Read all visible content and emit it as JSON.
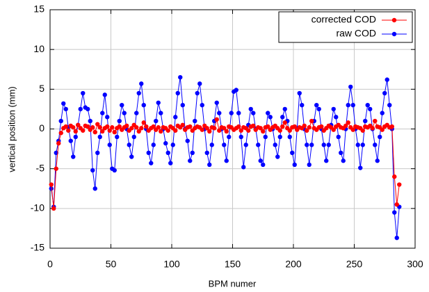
{
  "chart_data": {
    "type": "line",
    "xlabel": "BPM numer",
    "ylabel": "vertical position (mm)",
    "x": [
      1,
      3,
      5,
      7,
      9,
      11,
      13,
      15,
      17,
      19,
      21,
      23,
      25,
      27,
      29,
      31,
      33,
      35,
      37,
      39,
      41,
      43,
      45,
      47,
      49,
      51,
      53,
      55,
      57,
      59,
      61,
      63,
      65,
      67,
      69,
      71,
      73,
      75,
      77,
      79,
      81,
      83,
      85,
      87,
      89,
      91,
      93,
      95,
      97,
      99,
      101,
      103,
      105,
      107,
      109,
      111,
      113,
      115,
      117,
      119,
      121,
      123,
      125,
      127,
      129,
      131,
      133,
      135,
      137,
      139,
      141,
      143,
      145,
      147,
      149,
      151,
      153,
      155,
      157,
      159,
      161,
      163,
      165,
      167,
      169,
      171,
      173,
      175,
      177,
      179,
      181,
      183,
      185,
      187,
      189,
      191,
      193,
      195,
      197,
      199,
      201,
      203,
      205,
      207,
      209,
      211,
      213,
      215,
      217,
      219,
      221,
      223,
      225,
      227,
      229,
      231,
      233,
      235,
      237,
      239,
      241,
      243,
      245,
      247,
      249,
      251,
      253,
      255,
      257,
      259,
      261,
      263,
      265,
      267,
      269,
      271,
      273,
      275,
      277,
      279,
      281,
      283,
      285,
      287
    ],
    "series": [
      {
        "name": "corrected COD",
        "color": "#ff0000",
        "values": [
          -7,
          -10,
          -5,
          -1.8,
          -0.5,
          0.1,
          0.3,
          -0.2,
          0.4,
          0.2,
          -0.3,
          0.5,
          0.1,
          -0.2,
          0.4,
          0.3,
          -0.1,
          0.2,
          -0.4,
          0.6,
          0.2,
          -0.3,
          0.1,
          0.3,
          -0.2,
          0.2,
          -0.4,
          0.1,
          0.3,
          -0.1,
          0.2,
          0.4,
          -0.2,
          0.1,
          0.5,
          0.2,
          -0.3,
          0.1,
          0.8,
          0.3,
          -0.2,
          0.1,
          0.3,
          -0.1,
          0.2,
          -0.3,
          0.2,
          0.1,
          -0.2,
          0.3,
          0.1,
          -0.2,
          0.4,
          0.2,
          0.5,
          -0.1,
          0.2,
          0.3,
          -0.2,
          0.1,
          0.3,
          0.2,
          -0.1,
          0.4,
          0.1,
          -0.3,
          0.2,
          0.1,
          1.2,
          -0.2,
          0.2,
          0.1,
          -0.3,
          0.3,
          0.2,
          -0.1,
          0.1,
          0.3,
          -0.2,
          0.2,
          0.1,
          -0.2,
          0.3,
          0.4,
          -0.1,
          0.2,
          0.1,
          -0.3,
          0.2,
          0.3,
          -0.1,
          0.2,
          0.4,
          0.1,
          -0.2,
          0.3,
          0.8,
          0.1,
          -0.2,
          0.2,
          0.3,
          -0.1,
          0.2,
          0.1,
          0.4,
          -0.2,
          0.2,
          1.0,
          0.1,
          -0.1,
          0.2,
          0.3,
          -0.2,
          0.1,
          0.4,
          0.2,
          -0.1,
          0.3,
          0.5,
          0.2,
          0.1,
          0.4,
          0.8,
          0.2,
          -0.1,
          0.3,
          0.2,
          0.1,
          -0.2,
          0.3,
          0.2,
          0.4,
          0.1,
          1.0,
          0.3,
          0.2,
          -0.1,
          0.3,
          0.5,
          0.2,
          0.3,
          -6,
          -9.5,
          -7
        ]
      },
      {
        "name": "raw COD",
        "color": "#0000ff",
        "values": [
          -7.5,
          -9.8,
          -3,
          -1.5,
          1,
          3.2,
          2.5,
          0.2,
          -1.5,
          -3.5,
          -1,
          0.5,
          2.5,
          4.5,
          2.7,
          2.5,
          1,
          -5.2,
          -7.5,
          -3,
          -1,
          2,
          4.3,
          1.5,
          -2,
          -5,
          -5.2,
          -1,
          1,
          3,
          2,
          0,
          -2,
          -3.5,
          -1,
          2,
          4.5,
          5.7,
          3,
          0,
          -3,
          -4.3,
          -2,
          1,
          3.3,
          2,
          0,
          -1.8,
          -3,
          -4.3,
          -2,
          1.5,
          4.5,
          6.5,
          3,
          0,
          -1.5,
          -4,
          -3,
          1,
          4.5,
          5.7,
          3,
          0,
          -3,
          -4.5,
          -2,
          1,
          3.3,
          2,
          0,
          -2,
          -4,
          -1,
          2,
          4.7,
          4.9,
          2,
          -1,
          -4.8,
          -2,
          0.5,
          2.5,
          2,
          0,
          -2,
          -4,
          -4.5,
          -1,
          2,
          1.5,
          0,
          -2,
          -3.5,
          -1,
          1.5,
          2.5,
          1,
          -1,
          -3,
          -4.5,
          0,
          4.5,
          3,
          0,
          -2,
          -4.5,
          -2,
          1,
          3,
          2.5,
          0,
          -2,
          -4,
          -2,
          0.5,
          2.5,
          1.5,
          -1,
          -3,
          -4,
          0,
          3,
          5.3,
          3,
          0,
          -2,
          -4.9,
          -2,
          1,
          3,
          2.5,
          0,
          -2,
          -4,
          -1,
          2,
          4.5,
          6.2,
          3,
          0,
          -10.5,
          -13.7,
          -9.8
        ]
      }
    ],
    "xlim": [
      0,
      300
    ],
    "xticks": [
      0,
      50,
      100,
      150,
      200,
      250,
      300
    ],
    "ylim": [
      -15,
      15
    ],
    "yticks": [
      -15,
      -10,
      -5,
      0,
      5,
      10,
      15
    ],
    "grid": true,
    "legend": "upper right"
  }
}
